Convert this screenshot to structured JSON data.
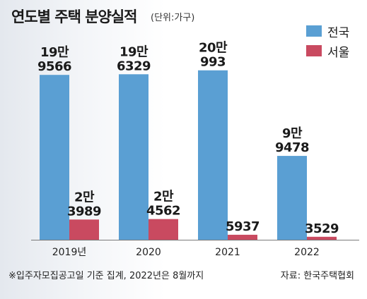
{
  "title": "연도별 주택 분양실적",
  "unit": "(단위:가구)",
  "note": "※입주자모집공고일 기준 집계, 2022년은 8월까지",
  "source": "자료: 한국주택협회",
  "colors": {
    "national": "#5a9fd3",
    "seoul": "#c94a60",
    "axis": "#7a7a7a"
  },
  "chart_data": {
    "type": "bar",
    "title": "연도별 주택 분양실적",
    "categories": [
      "2019년",
      "2020",
      "2021",
      "2022"
    ],
    "series": [
      {
        "name": "전국",
        "values": [
          195566,
          196329,
          200993,
          99478
        ],
        "labels": [
          [
            "19만",
            "9566"
          ],
          [
            "19만",
            "6329"
          ],
          [
            "20만",
            "993"
          ],
          [
            "9만",
            "9478"
          ]
        ]
      },
      {
        "name": "서울",
        "values": [
          23989,
          24562,
          5937,
          3529
        ],
        "labels": [
          [
            "2만",
            "3989"
          ],
          [
            "2만",
            "4562"
          ],
          [
            "5937"
          ],
          [
            "3529"
          ]
        ]
      }
    ],
    "ylim": [
      0,
      220000
    ],
    "grid": false,
    "legend": "top-right"
  }
}
